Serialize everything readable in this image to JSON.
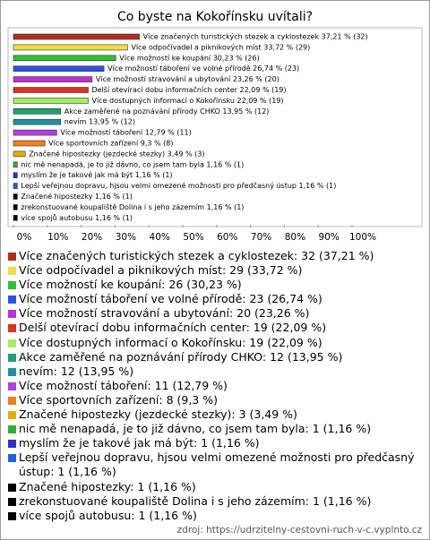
{
  "chart_data": {
    "type": "bar",
    "orientation": "horizontal",
    "title": "Co byste na Kokořínsku uvítali?",
    "categories": [
      "Více značených turistických stezek a cyklostezek",
      "Více odpočívadel a piknikových míst",
      "Více možností ke koupání",
      "Více možností táboření ve volné přírodě",
      "Více možností stravování a ubytování",
      "Delší otevírací dobu informačních center",
      "Více dostupných informací o Kokořínsku",
      "Akce zaměřené na poznávání přírody CHKO",
      "nevím",
      "Více možností táboření",
      "Více sportovních zařízení",
      "Značené hipostezky (jezdecké stezky)",
      "nic mě nenapadá, je to již dávno, co jsem tam byla",
      "myslím že je takové jak má být",
      "Lepší veřejnou dopravu, hjsou velmi omezené možnosti pro předčasný ústup",
      "Značené hipostezky",
      "zrekonstuované koupaliště Dolina i s jeho zázemím",
      "více spojů autobusu"
    ],
    "values": [
      37.21,
      33.72,
      30.23,
      26.74,
      23.26,
      22.09,
      22.09,
      13.95,
      13.95,
      12.79,
      9.3,
      3.49,
      1.16,
      1.16,
      1.16,
      1.16,
      1.16,
      1.16
    ],
    "counts": [
      32,
      29,
      26,
      23,
      20,
      19,
      19,
      12,
      12,
      11,
      8,
      3,
      1,
      1,
      1,
      1,
      1,
      1
    ],
    "bar_labels": [
      "Více značených turistických stezek a cyklostezek 37,21 % (32)",
      "Více odpočívadel a piknikových míst 33,72 % (29)",
      "Více možností ke koupání 30,23 % (26)",
      "Více možností táboření ve volné přírodě 26,74 % (23)",
      "Více možností stravování a ubytování 23,26 % (20)",
      "Delší otevírací dobu informačních center 22,09 % (19)",
      "Více dostupných informací o Kokořínsku 22,09 % (19)",
      "Akce zaměřené na poznávání přírody CHKO 13,95 % (12)",
      "nevím 13,95 % (12)",
      "Více možností táboření 12,79 % (11)",
      "Více sportovních zařízení 9,3 % (8)",
      "Značené hipostezky (jezdecké stezky) 3,49 % (3)",
      "nic mě nenapadá, je to již dávno, co jsem tam byla 1,16 % (1)",
      "myslím že je takové jak má být 1,16 % (1)",
      "Lepší veřejnou dopravu, hjsou velmi omezené možnosti pro předčasný ústup 1,16 % (1)",
      "Značené hipostezky 1,16 % (1)",
      "zrekonstuované koupaliště Dolina i s jeho zázemím 1,16 % (1)",
      "více spojů autobusu 1,16 % (1)"
    ],
    "legend_labels": [
      "Více značených turistických stezek a cyklostezek: 32 (37,21 %)",
      "Více odpočívadel a piknikových míst: 29 (33,72 %)",
      "Více možností ke koupání: 26 (30,23 %)",
      "Více možností táboření ve volné přírodě: 23 (26,74 %)",
      "Více možností stravování a ubytování: 20 (23,26 %)",
      "Delší otevírací dobu informačních center: 19 (22,09 %)",
      "Více dostupných informací o Kokořínsku: 19 (22,09 %)",
      "Akce zaměřené na poznávání přírody CHKO: 12 (13,95 %)",
      "nevím: 12 (13,95 %)",
      "Více možností táboření: 11 (12,79 %)",
      "Více sportovních zařízení: 8 (9,3 %)",
      "Značené hipostezky (jezdecké stezky): 3 (3,49 %)",
      "nic mě nenapadá, je to již dávno, co jsem tam byla: 1 (1,16 %)",
      "myslím že je takové jak má být: 1 (1,16 %)",
      "Lepší veřejnou dopravu, hjsou velmi omezené možnosti pro předčasný ústup: 1 (1,16 %)",
      "Značené hipostezky: 1 (1,16 %)",
      "zrekonstuované koupaliště Dolina i s jeho zázemím: 1 (1,16 %)",
      "více spojů autobusu: 1 (1,16 %)"
    ],
    "colors": [
      "#b03020",
      "#f0e040",
      "#30c030",
      "#3050e0",
      "#c030d0",
      "#e03020",
      "#a0f060",
      "#20a070",
      "#2090a0",
      "#b040e0",
      "#f08020",
      "#e0b000",
      "#30b030",
      "#3030d0",
      "#2060e0",
      "#000000",
      "#000000",
      "#000000"
    ],
    "xlim": [
      0,
      100
    ],
    "xticks": [
      {
        "value": 0,
        "label": "0%"
      },
      {
        "value": 10,
        "label": "10%"
      },
      {
        "value": 20,
        "label": "20%"
      },
      {
        "value": 30,
        "label": "30%"
      },
      {
        "value": 40,
        "label": "40%"
      },
      {
        "value": 50,
        "label": "50%"
      },
      {
        "value": 60,
        "label": "60%"
      },
      {
        "value": 70,
        "label": "70%"
      },
      {
        "value": 80,
        "label": "80%"
      },
      {
        "value": 90,
        "label": "90%"
      },
      {
        "value": 100,
        "label": "100%"
      }
    ],
    "source": "zdroj: https://udrzitelny-cestovni-ruch-v-c.vyplnto.cz"
  }
}
